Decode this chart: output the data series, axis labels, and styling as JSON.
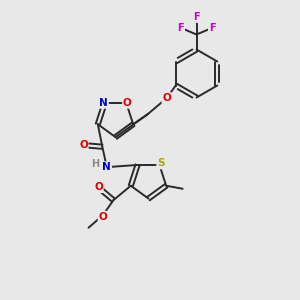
{
  "bg_color": "#e8e8e8",
  "bond_color": "#2a2a2a",
  "atom_colors": {
    "N": "#0000cc",
    "O": "#dd0000",
    "S": "#aaaa00",
    "F": "#cc00cc",
    "H": "#888888",
    "C": "#2a2a2a"
  },
  "lw": 1.4,
  "fs": 7.5
}
